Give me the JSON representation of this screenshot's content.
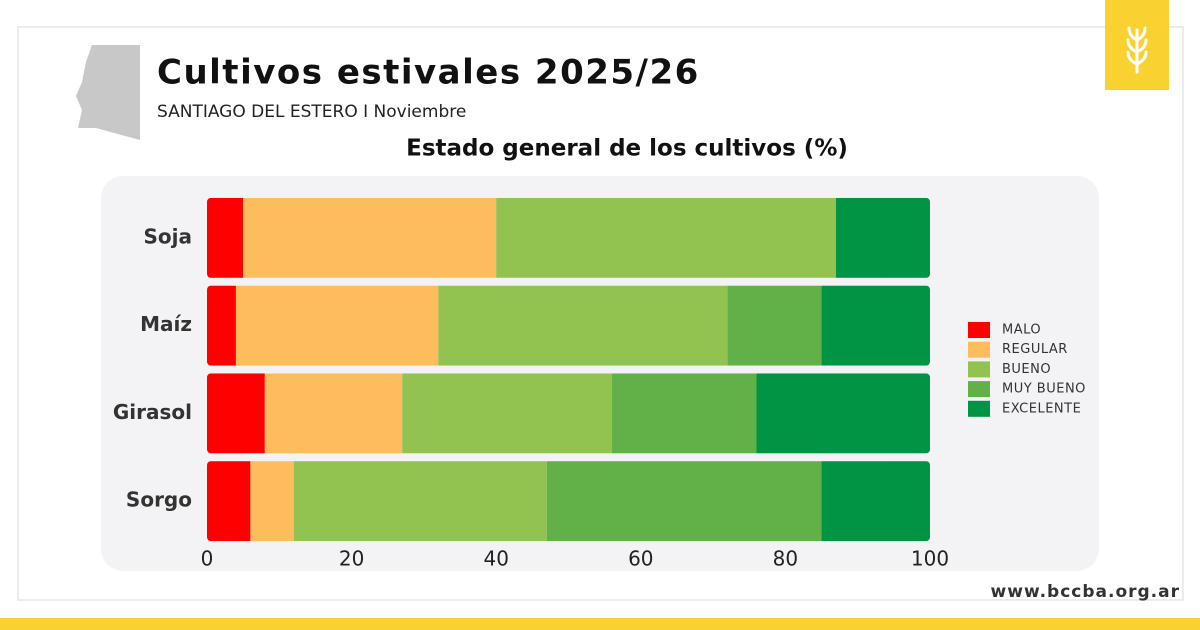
{
  "chart_data": {
    "type": "stacked-barh",
    "title": "Cultivos estivales 2025/26",
    "subtitle": "SANTIAGO DEL ESTERO I Noviembre",
    "chart_title": "Estado general de los cultivos (%)",
    "source": "www.bccba.org.ar",
    "categories": [
      "Soja",
      "Maíz",
      "Girasol",
      "Sorgo"
    ],
    "series": [
      {
        "name": "MALO",
        "color": "#fe0000",
        "values": [
          5,
          4,
          8,
          6
        ]
      },
      {
        "name": "REGULAR",
        "color": "#fdbd5c",
        "values": [
          35,
          28,
          19,
          6
        ]
      },
      {
        "name": "BUENO",
        "color": "#92c350",
        "values": [
          47,
          40,
          29,
          35
        ]
      },
      {
        "name": "MUY BUENO",
        "color": "#62b148",
        "values": [
          0,
          13,
          20,
          38
        ]
      },
      {
        "name": "EXCELENTE",
        "color": "#009444",
        "values": [
          13,
          15,
          24,
          15
        ]
      }
    ],
    "xlim": [
      0,
      100
    ],
    "xticks": [
      0,
      20,
      40,
      60,
      80,
      100
    ],
    "grid": false,
    "legend": "right"
  }
}
